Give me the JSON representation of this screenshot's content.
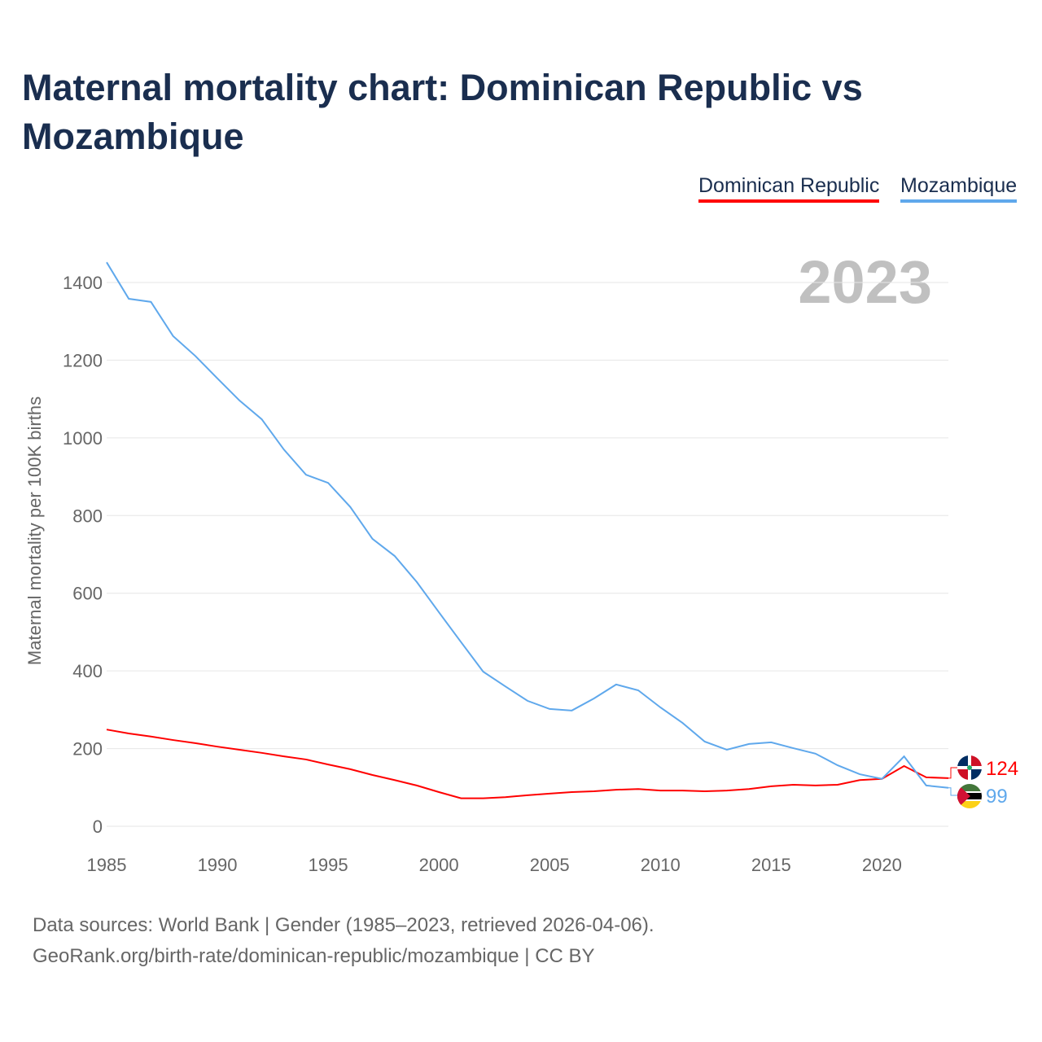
{
  "title": "Maternal mortality chart: Dominican Republic vs Mozambique",
  "footer": {
    "line1": "Data sources: World Bank | Gender (1985–2023, retrieved 2026-04-06).",
    "line2": "GeoRank.org/birth-rate/dominican-republic/mozambique | CC BY"
  },
  "chart_data": {
    "type": "line",
    "title": "Maternal mortality chart: Dominican Republic vs Mozambique",
    "xlabel": "",
    "ylabel": "Maternal mortality per 100K births",
    "year_label": "2023",
    "xlim": [
      1985,
      2023
    ],
    "ylim": [
      0,
      1450
    ],
    "xticks": [
      "1985",
      "1990",
      "1995",
      "2000",
      "2005",
      "2010",
      "2015",
      "2020"
    ],
    "yticks": [
      "0",
      "200",
      "400",
      "600",
      "800",
      "1000",
      "1200",
      "1400"
    ],
    "legend_position": "top-right",
    "x": [
      1985,
      1986,
      1987,
      1988,
      1989,
      1990,
      1991,
      1992,
      1993,
      1994,
      1995,
      1996,
      1997,
      1998,
      1999,
      2000,
      2001,
      2002,
      2003,
      2004,
      2005,
      2006,
      2007,
      2008,
      2009,
      2010,
      2011,
      2012,
      2013,
      2014,
      2015,
      2016,
      2017,
      2018,
      2019,
      2020,
      2021,
      2022,
      2023
    ],
    "series": [
      {
        "name": "Dominican Republic",
        "color": "#ff0000",
        "end_label": "124",
        "flag": "dominican-republic-flag-icon",
        "values": [
          249,
          239,
          231,
          222,
          214,
          205,
          197,
          189,
          180,
          172,
          159,
          147,
          132,
          119,
          105,
          88,
          72,
          72,
          75,
          80,
          84,
          88,
          90,
          94,
          96,
          92,
          92,
          90,
          92,
          96,
          103,
          107,
          105,
          107,
          119,
          122,
          155,
          126,
          124
        ]
      },
      {
        "name": "Mozambique",
        "color": "#5fa8ec",
        "end_label": "99",
        "flag": "mozambique-flag-icon",
        "values": [
          1452,
          1358,
          1350,
          1262,
          1211,
          1153,
          1096,
          1048,
          970,
          905,
          884,
          822,
          740,
          696,
          629,
          551,
          474,
          398,
          360,
          323,
          302,
          298,
          329,
          365,
          350,
          306,
          266,
          218,
          197,
          212,
          216,
          201,
          187,
          157,
          134,
          122,
          180,
          105,
          99
        ]
      }
    ]
  }
}
